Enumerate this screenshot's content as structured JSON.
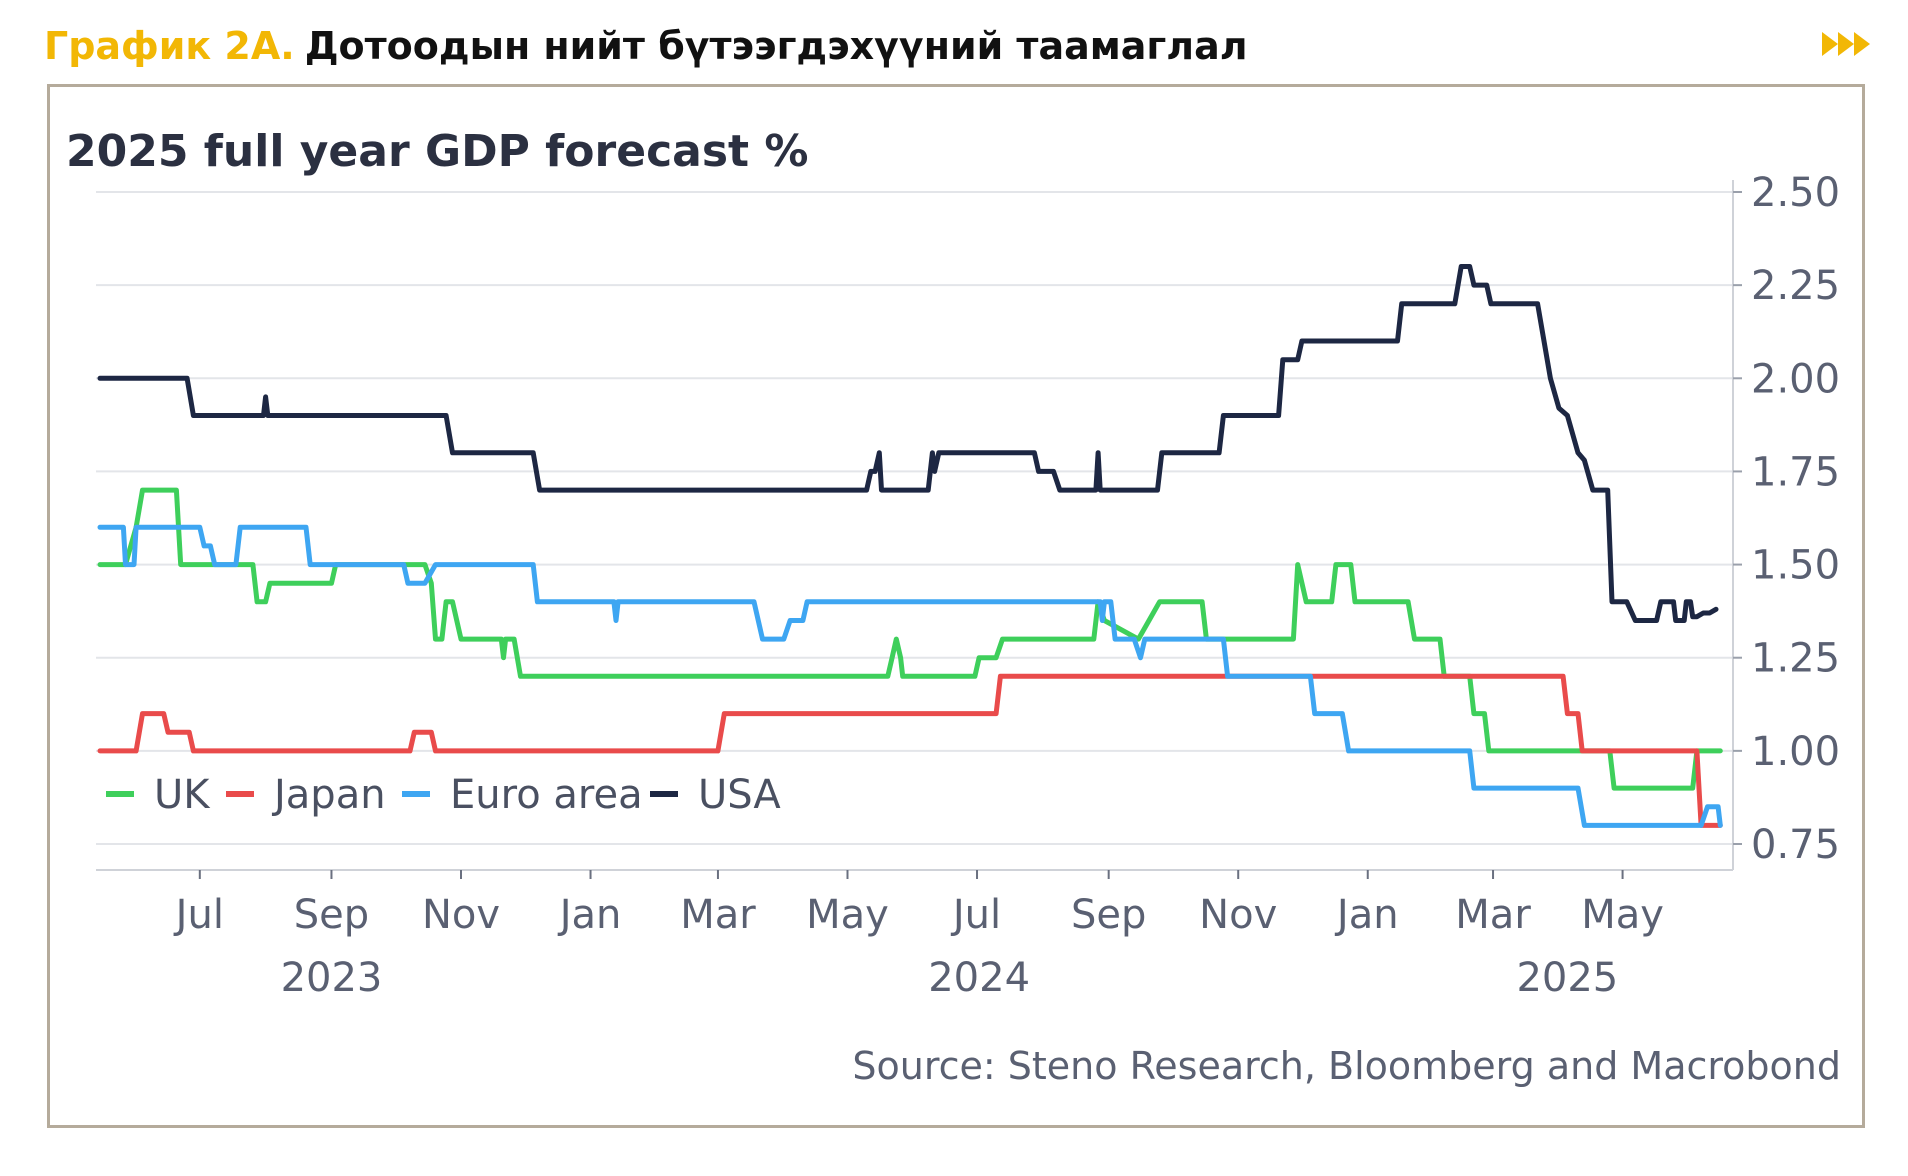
{
  "header": {
    "prefix": "График 2А.",
    "title": "Дотоодын нийт бүтээгдэхүүний таамаглал",
    "nav_icon": "double-chevron-right-icon",
    "colors": {
      "prefix": "#f2b705",
      "title": "#111111",
      "frame": "#b5ab9b"
    }
  },
  "source": "Source: Steno Research, Bloomberg and Macrobond",
  "chart_data": {
    "type": "line",
    "title": "2025 full year GDP forecast %",
    "xlabel": "",
    "ylabel": "",
    "y_axis_side": "right",
    "ylim": [
      0.75,
      2.5
    ],
    "y_ticks": [
      "2.50",
      "2.25",
      "2.00",
      "1.75",
      "1.50",
      "1.25",
      "1.00",
      "0.75"
    ],
    "x_range": [
      "2023-05-15",
      "2025-06-22"
    ],
    "x_ticks": [
      {
        "label": "Jul",
        "date": "2023-07-01"
      },
      {
        "label": "Sep",
        "date": "2023-09-01"
      },
      {
        "label": "Nov",
        "date": "2023-11-01"
      },
      {
        "label": "Jan",
        "date": "2024-01-01"
      },
      {
        "label": "Mar",
        "date": "2024-03-01"
      },
      {
        "label": "May",
        "date": "2024-05-01"
      },
      {
        "label": "Jul",
        "date": "2024-07-01"
      },
      {
        "label": "Sep",
        "date": "2024-09-01"
      },
      {
        "label": "Nov",
        "date": "2024-11-01"
      },
      {
        "label": "Jan",
        "date": "2025-01-01"
      },
      {
        "label": "Mar",
        "date": "2025-03-01"
      },
      {
        "label": "May",
        "date": "2025-05-01"
      }
    ],
    "year_labels": [
      {
        "label": "2023",
        "date": "2023-09-01"
      },
      {
        "label": "2024",
        "date": "2024-07-02"
      },
      {
        "label": "2025",
        "date": "2025-04-05"
      }
    ],
    "grid": true,
    "legend_position": "bottom-left",
    "series": [
      {
        "name": "UK",
        "color": "#3ecf5b",
        "points": [
          [
            "2023-05-15",
            1.5
          ],
          [
            "2023-05-27",
            1.5
          ],
          [
            "2023-06-01",
            1.6
          ],
          [
            "2023-06-04",
            1.7
          ],
          [
            "2023-06-20",
            1.7
          ],
          [
            "2023-06-22",
            1.5
          ],
          [
            "2023-07-15",
            1.5
          ],
          [
            "2023-07-26",
            1.5
          ],
          [
            "2023-07-28",
            1.4
          ],
          [
            "2023-08-01",
            1.4
          ],
          [
            "2023-08-03",
            1.45
          ],
          [
            "2023-09-01",
            1.45
          ],
          [
            "2023-09-03",
            1.5
          ],
          [
            "2023-10-15",
            1.5
          ],
          [
            "2023-10-18",
            1.45
          ],
          [
            "2023-10-20",
            1.3
          ],
          [
            "2023-10-23",
            1.3
          ],
          [
            "2023-10-25",
            1.4
          ],
          [
            "2023-10-28",
            1.4
          ],
          [
            "2023-11-01",
            1.3
          ],
          [
            "2023-11-10",
            1.3
          ],
          [
            "2023-11-20",
            1.3
          ],
          [
            "2023-11-21",
            1.25
          ],
          [
            "2023-11-22",
            1.3
          ],
          [
            "2023-11-26",
            1.3
          ],
          [
            "2023-11-29",
            1.2
          ],
          [
            "2024-05-20",
            1.2
          ],
          [
            "2024-05-22",
            1.25
          ],
          [
            "2024-05-24",
            1.3
          ],
          [
            "2024-05-26",
            1.25
          ],
          [
            "2024-05-27",
            1.2
          ],
          [
            "2024-06-30",
            1.2
          ],
          [
            "2024-07-02",
            1.25
          ],
          [
            "2024-07-10",
            1.25
          ],
          [
            "2024-07-13",
            1.3
          ],
          [
            "2024-08-20",
            1.3
          ],
          [
            "2024-08-25",
            1.3
          ],
          [
            "2024-08-27",
            1.4
          ],
          [
            "2024-08-30",
            1.35
          ],
          [
            "2024-09-15",
            1.3
          ],
          [
            "2024-09-20",
            1.35
          ],
          [
            "2024-09-25",
            1.4
          ],
          [
            "2024-10-15",
            1.4
          ],
          [
            "2024-10-17",
            1.3
          ],
          [
            "2024-11-10",
            1.3
          ],
          [
            "2024-11-27",
            1.3
          ],
          [
            "2024-11-29",
            1.5
          ],
          [
            "2024-12-03",
            1.4
          ],
          [
            "2024-12-15",
            1.4
          ],
          [
            "2024-12-17",
            1.5
          ],
          [
            "2024-12-24",
            1.5
          ],
          [
            "2024-12-26",
            1.4
          ],
          [
            "2025-01-20",
            1.4
          ],
          [
            "2025-01-23",
            1.3
          ],
          [
            "2025-02-04",
            1.3
          ],
          [
            "2025-02-06",
            1.2
          ],
          [
            "2025-02-18",
            1.2
          ],
          [
            "2025-02-20",
            1.1
          ],
          [
            "2025-02-25",
            1.1
          ],
          [
            "2025-02-27",
            1.0
          ],
          [
            "2025-04-25",
            1.0
          ],
          [
            "2025-04-27",
            0.9
          ],
          [
            "2025-06-03",
            0.9
          ],
          [
            "2025-06-05",
            1.0
          ],
          [
            "2025-06-16",
            1.0
          ]
        ]
      },
      {
        "name": "Japan",
        "color": "#e94b4b",
        "points": [
          [
            "2023-05-15",
            1.0
          ],
          [
            "2023-06-01",
            1.0
          ],
          [
            "2023-06-04",
            1.1
          ],
          [
            "2023-06-14",
            1.1
          ],
          [
            "2023-06-16",
            1.05
          ],
          [
            "2023-06-26",
            1.05
          ],
          [
            "2023-06-28",
            1.0
          ],
          [
            "2023-10-08",
            1.0
          ],
          [
            "2023-10-10",
            1.05
          ],
          [
            "2023-10-18",
            1.05
          ],
          [
            "2023-10-20",
            1.0
          ],
          [
            "2024-03-01",
            1.0
          ],
          [
            "2024-03-04",
            1.1
          ],
          [
            "2024-07-10",
            1.1
          ],
          [
            "2024-07-12",
            1.2
          ],
          [
            "2025-04-03",
            1.2
          ],
          [
            "2025-04-05",
            1.1
          ],
          [
            "2025-04-10",
            1.1
          ],
          [
            "2025-04-12",
            1.0
          ],
          [
            "2025-06-05",
            1.0
          ],
          [
            "2025-06-07",
            0.8
          ],
          [
            "2025-06-16",
            0.8
          ]
        ]
      },
      {
        "name": "Euro area",
        "color": "#3ea6f2",
        "points": [
          [
            "2023-05-15",
            1.6
          ],
          [
            "2023-05-26",
            1.6
          ],
          [
            "2023-05-27",
            1.5
          ],
          [
            "2023-05-31",
            1.5
          ],
          [
            "2023-06-01",
            1.6
          ],
          [
            "2023-07-01",
            1.6
          ],
          [
            "2023-07-03",
            1.55
          ],
          [
            "2023-07-06",
            1.55
          ],
          [
            "2023-07-08",
            1.5
          ],
          [
            "2023-07-18",
            1.5
          ],
          [
            "2023-07-20",
            1.6
          ],
          [
            "2023-08-20",
            1.6
          ],
          [
            "2023-08-22",
            1.5
          ],
          [
            "2023-10-05",
            1.5
          ],
          [
            "2023-10-07",
            1.45
          ],
          [
            "2023-10-15",
            1.45
          ],
          [
            "2023-10-20",
            1.5
          ],
          [
            "2023-12-05",
            1.5
          ],
          [
            "2023-12-07",
            1.4
          ],
          [
            "2024-01-12",
            1.4
          ],
          [
            "2024-01-13",
            1.35
          ],
          [
            "2024-01-14",
            1.4
          ],
          [
            "2024-03-18",
            1.4
          ],
          [
            "2024-03-22",
            1.3
          ],
          [
            "2024-04-01",
            1.3
          ],
          [
            "2024-04-04",
            1.35
          ],
          [
            "2024-04-10",
            1.35
          ],
          [
            "2024-04-12",
            1.4
          ],
          [
            "2024-08-28",
            1.4
          ],
          [
            "2024-08-29",
            1.35
          ],
          [
            "2024-08-30",
            1.4
          ],
          [
            "2024-09-02",
            1.4
          ],
          [
            "2024-09-04",
            1.3
          ],
          [
            "2024-09-13",
            1.3
          ],
          [
            "2024-09-16",
            1.25
          ],
          [
            "2024-09-18",
            1.3
          ],
          [
            "2024-10-25",
            1.3
          ],
          [
            "2024-10-27",
            1.2
          ],
          [
            "2024-12-05",
            1.2
          ],
          [
            "2024-12-07",
            1.1
          ],
          [
            "2024-12-20",
            1.1
          ],
          [
            "2024-12-23",
            1.0
          ],
          [
            "2025-02-18",
            1.0
          ],
          [
            "2025-02-20",
            0.9
          ],
          [
            "2025-04-10",
            0.9
          ],
          [
            "2025-04-13",
            0.8
          ],
          [
            "2025-06-07",
            0.8
          ],
          [
            "2025-06-10",
            0.85
          ],
          [
            "2025-06-15",
            0.85
          ],
          [
            "2025-06-16",
            0.8
          ]
        ]
      },
      {
        "name": "USA",
        "color": "#1d2743",
        "points": [
          [
            "2023-05-15",
            2.0
          ],
          [
            "2023-06-25",
            2.0
          ],
          [
            "2023-06-28",
            1.9
          ],
          [
            "2023-07-31",
            1.9
          ],
          [
            "2023-08-01",
            1.95
          ],
          [
            "2023-08-02",
            1.9
          ],
          [
            "2023-10-25",
            1.9
          ],
          [
            "2023-10-28",
            1.8
          ],
          [
            "2023-12-05",
            1.8
          ],
          [
            "2023-12-08",
            1.7
          ],
          [
            "2024-05-10",
            1.7
          ],
          [
            "2024-05-12",
            1.75
          ],
          [
            "2024-05-14",
            1.75
          ],
          [
            "2024-05-16",
            1.8
          ],
          [
            "2024-05-17",
            1.7
          ],
          [
            "2024-06-08",
            1.7
          ],
          [
            "2024-06-10",
            1.8
          ],
          [
            "2024-06-11",
            1.75
          ],
          [
            "2024-06-13",
            1.8
          ],
          [
            "2024-07-28",
            1.8
          ],
          [
            "2024-07-30",
            1.75
          ],
          [
            "2024-08-06",
            1.75
          ],
          [
            "2024-08-09",
            1.7
          ],
          [
            "2024-08-26",
            1.7
          ],
          [
            "2024-08-27",
            1.8
          ],
          [
            "2024-08-28",
            1.7
          ],
          [
            "2024-09-24",
            1.7
          ],
          [
            "2024-09-26",
            1.8
          ],
          [
            "2024-10-23",
            1.8
          ],
          [
            "2024-10-25",
            1.9
          ],
          [
            "2024-11-20",
            1.9
          ],
          [
            "2024-11-22",
            2.05
          ],
          [
            "2024-11-29",
            2.05
          ],
          [
            "2024-12-01",
            2.1
          ],
          [
            "2025-01-15",
            2.1
          ],
          [
            "2025-01-17",
            2.2
          ],
          [
            "2025-02-11",
            2.2
          ],
          [
            "2025-02-14",
            2.3
          ],
          [
            "2025-02-18",
            2.3
          ],
          [
            "2025-02-20",
            2.25
          ],
          [
            "2025-02-26",
            2.25
          ],
          [
            "2025-02-28",
            2.2
          ],
          [
            "2025-03-22",
            2.2
          ],
          [
            "2025-03-28",
            2.0
          ],
          [
            "2025-04-01",
            1.92
          ],
          [
            "2025-04-05",
            1.9
          ],
          [
            "2025-04-10",
            1.8
          ],
          [
            "2025-04-13",
            1.78
          ],
          [
            "2025-04-17",
            1.7
          ],
          [
            "2025-04-24",
            1.7
          ],
          [
            "2025-04-26",
            1.4
          ],
          [
            "2025-05-03",
            1.4
          ],
          [
            "2025-05-07",
            1.35
          ],
          [
            "2025-05-17",
            1.35
          ],
          [
            "2025-05-19",
            1.4
          ],
          [
            "2025-05-25",
            1.4
          ],
          [
            "2025-05-26",
            1.35
          ],
          [
            "2025-05-30",
            1.35
          ],
          [
            "2025-05-31",
            1.4
          ],
          [
            "2025-06-02",
            1.4
          ],
          [
            "2025-06-03",
            1.36
          ],
          [
            "2025-06-05",
            1.36
          ],
          [
            "2025-06-08",
            1.37
          ],
          [
            "2025-06-11",
            1.37
          ],
          [
            "2025-06-14",
            1.38
          ]
        ]
      }
    ]
  }
}
